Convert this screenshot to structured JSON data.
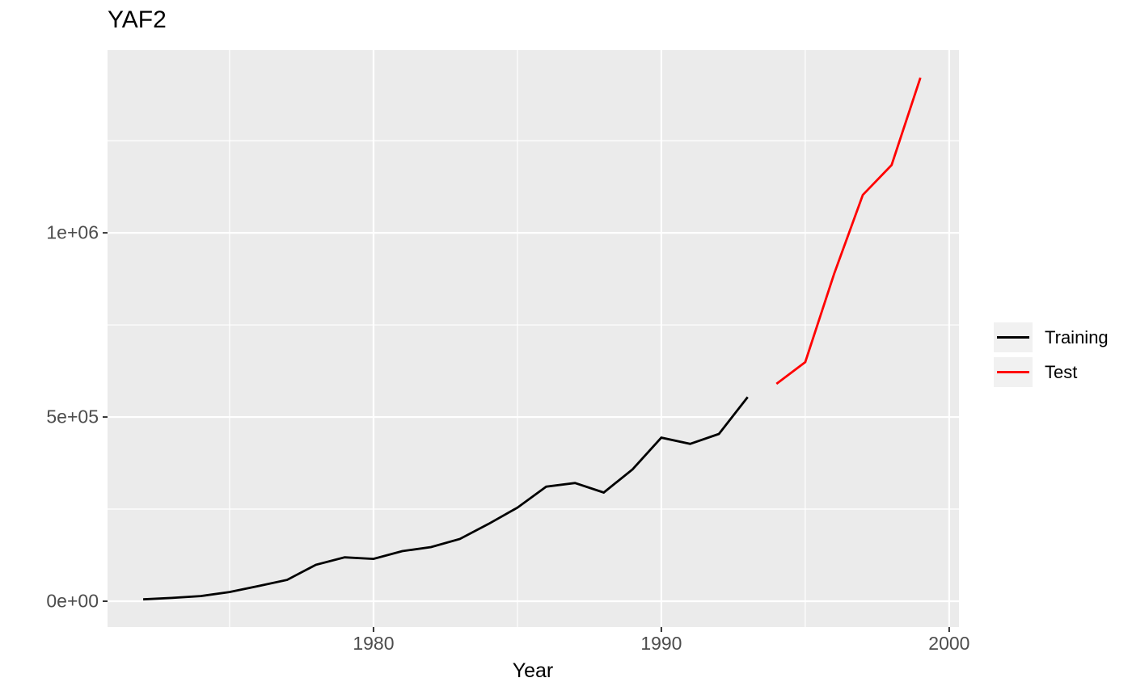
{
  "chart_data": {
    "type": "line",
    "title": "YAF2",
    "xlabel": "Year",
    "ylabel": "",
    "colors": {
      "page_background": "#FFFFFF",
      "panel_background": "#EBEBEB",
      "gridline": "#FFFFFF",
      "tick_mark": "#333333",
      "axis_text": "#4D4D4D",
      "legend_key_background": "#F1F1F1"
    },
    "x_axis": {
      "domain": [
        1970.76,
        2000.34
      ],
      "major_ticks": [
        1980,
        1990,
        2000
      ],
      "minor_ticks": [
        1975,
        1985,
        1995
      ],
      "tick_labels": [
        "1980",
        "1990",
        "2000"
      ]
    },
    "y_axis": {
      "domain": [
        -70200,
        1496000
      ],
      "major_ticks": [
        0,
        500000,
        1000000
      ],
      "minor_ticks": [
        250000,
        750000,
        1250000
      ],
      "tick_labels": [
        "0e+00",
        "5e+05",
        "1e+06"
      ]
    },
    "legend": {
      "position": "right"
    },
    "series": [
      {
        "name": "Training",
        "color": "#000000",
        "x": [
          1972,
          1973,
          1974,
          1975,
          1976,
          1977,
          1978,
          1979,
          1980,
          1981,
          1982,
          1983,
          1984,
          1985,
          1986,
          1987,
          1988,
          1989,
          1990,
          1991,
          1992,
          1993
        ],
        "values": [
          5000,
          9000,
          14000,
          25000,
          41000,
          58000,
          99000,
          119000,
          115000,
          136000,
          147000,
          169000,
          210000,
          254000,
          311000,
          321000,
          295000,
          358000,
          444000,
          427000,
          454000,
          554000
        ]
      },
      {
        "name": "Test",
        "color": "#FF0000",
        "x": [
          1994,
          1995,
          1996,
          1997,
          1998,
          1999
        ],
        "values": [
          590000,
          649000,
          888000,
          1103000,
          1184000,
          1421000
        ]
      }
    ]
  }
}
